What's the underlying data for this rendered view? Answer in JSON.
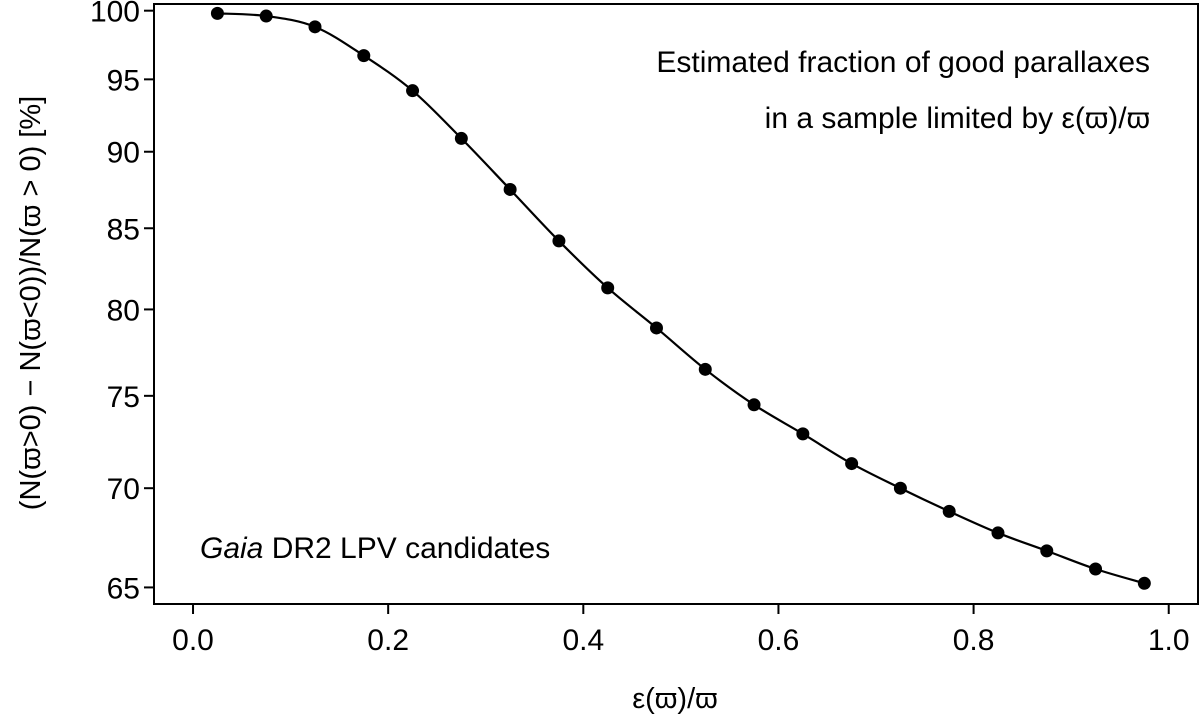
{
  "chart_data": {
    "type": "line",
    "title": "",
    "xlabel": "ε(ϖ)/ϖ",
    "ylabel": "(N(ϖ>0) − N(ϖ<0))/N(ϖ > 0) [%]",
    "xlim": [
      -0.04,
      1.03
    ],
    "ylim": [
      64.2,
      100.5
    ],
    "y_scale": "log",
    "grid": false,
    "x_ticks": [
      "0.0",
      "0.2",
      "0.4",
      "0.6",
      "0.8",
      "1.0"
    ],
    "y_ticks": [
      "65",
      "70",
      "75",
      "80",
      "85",
      "90",
      "95",
      "100"
    ],
    "annotations": {
      "top_right_line1": "Estimated fraction of good parallaxes",
      "top_right_line2": "in a sample limited by ε(ϖ)/ϖ",
      "bottom_left_italic": "Gaia",
      "bottom_left_rest": " DR2 LPV candidates"
    },
    "series": [
      {
        "x": [
          0.025,
          0.075,
          0.125,
          0.175,
          0.225,
          0.275,
          0.325,
          0.375,
          0.425,
          0.475,
          0.525,
          0.575,
          0.625,
          0.675,
          0.725,
          0.775,
          0.825,
          0.875,
          0.925,
          0.975
        ],
        "y": [
          99.8,
          99.6,
          98.8,
          96.7,
          94.2,
          90.9,
          87.5,
          84.2,
          81.3,
          78.9,
          76.5,
          74.5,
          72.9,
          71.3,
          70.0,
          68.8,
          67.7,
          66.8,
          65.9,
          65.2
        ]
      }
    ]
  }
}
